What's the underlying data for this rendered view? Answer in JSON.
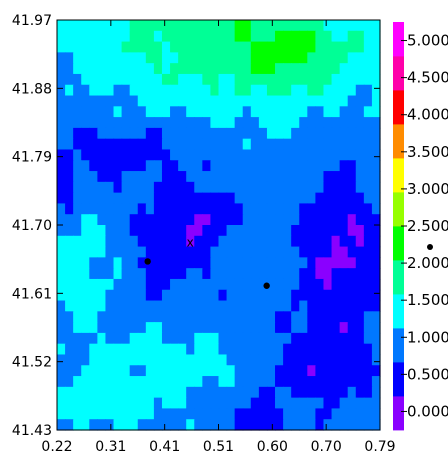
{
  "chart_data": {
    "type": "heatmap",
    "title": "",
    "xlabel": "",
    "ylabel": "",
    "x_ticks": [
      "0.22",
      "0.31",
      "0.41",
      "0.51",
      "0.60",
      "0.70",
      "0.79"
    ],
    "y_ticks": [
      "41.97",
      "41.88",
      "41.79",
      "41.70",
      "41.61",
      "41.52",
      "41.43"
    ],
    "xlim": [
      0.22,
      0.79
    ],
    "ylim": [
      41.43,
      41.97
    ],
    "colorbar": {
      "ticks": [
        "0.000",
        "0.500",
        "1.000",
        "1.500",
        "2.000",
        "2.500",
        "3.000",
        "3.500",
        "4.000",
        "4.500",
        "5.000"
      ],
      "range": [
        -0.25,
        5.25
      ],
      "colors": [
        "#8a00ff",
        "#0000ff",
        "#0078ff",
        "#00ffff",
        "#00ff96",
        "#00ff00",
        "#96ff00",
        "#ffff00",
        "#ff8c00",
        "#ff0000",
        "#ff00aa",
        "#ff00ff"
      ]
    },
    "markers": [
      {
        "type": "dot",
        "x": 0.38,
        "y": 41.652
      },
      {
        "type": "dot",
        "x": 0.59,
        "y": 41.62
      },
      {
        "type": "cross",
        "label": "x",
        "x": 0.455,
        "y": 41.678
      }
    ],
    "grid_summary": {
      "description_levels": "field values 0-2.5; low (blue) in center and lower-right, higher (green) at top",
      "nx": 40,
      "ny": 38
    }
  }
}
